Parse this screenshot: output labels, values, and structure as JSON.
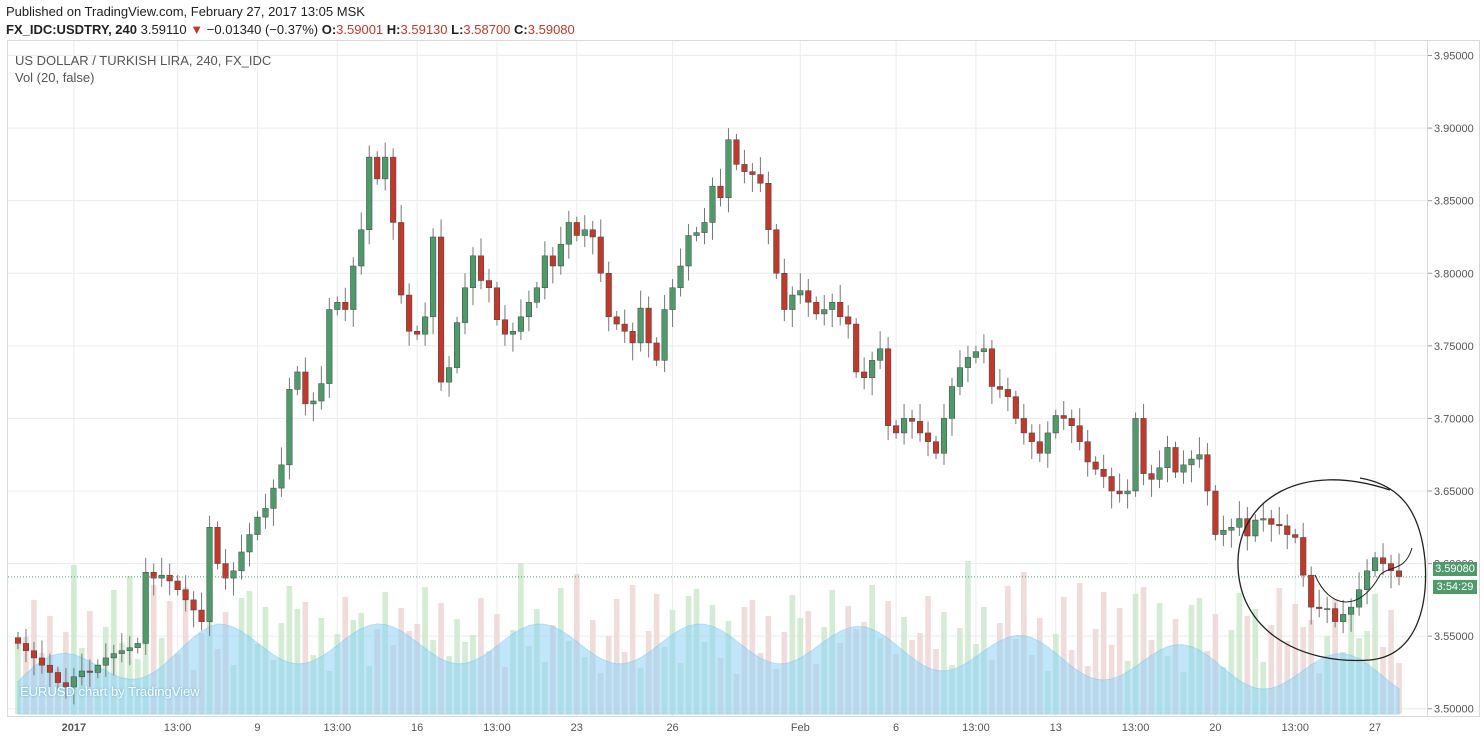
{
  "header": {
    "published": "Published on TradingView.com, February 27, 2017 13:05 MSK",
    "symbol": "FX_IDC:USDTRY, 240",
    "last": "3.59110",
    "change": "−0.01340 (−0.37%)",
    "o_label": "O:",
    "o_value": "3.59001",
    "h_label": "H:",
    "h_value": "3.59130",
    "l_label": "L:",
    "l_value": "3.58700",
    "c_label": "C:",
    "c_value": "3.59080"
  },
  "legend": {
    "title": "US DOLLAR / TURKISH LIRA, 240, FX_IDC",
    "volume": "Vol (20, false)"
  },
  "watermark": "EURUSD chart by TradingView",
  "badges": {
    "price": "3.59080",
    "time": "3:54:29"
  },
  "colors": {
    "up": "#4f9a6b",
    "down": "#c0392b",
    "vol_up": "#c9e6c9",
    "vol_down": "#eed3d3",
    "ma": "#8fd2f5"
  },
  "chart_data": {
    "type": "candlestick",
    "ylim": [
      3.495,
      3.96
    ],
    "y_ticks": [
      "3.95000",
      "3.90000",
      "3.85000",
      "3.80000",
      "3.75000",
      "3.70000",
      "3.65000",
      "3.60000",
      "3.55000",
      "3.50000"
    ],
    "y_tick_values": [
      3.95,
      3.9,
      3.85,
      3.8,
      3.75,
      3.7,
      3.65,
      3.6,
      3.55,
      3.5
    ],
    "x_ticks": [
      {
        "label": "2017",
        "bar": 7,
        "bold": true
      },
      {
        "label": "13:00",
        "bar": 20
      },
      {
        "label": "9",
        "bar": 30
      },
      {
        "label": "13:00",
        "bar": 40
      },
      {
        "label": "16",
        "bar": 50
      },
      {
        "label": "13:00",
        "bar": 60
      },
      {
        "label": "23",
        "bar": 70
      },
      {
        "label": "26",
        "bar": 82
      },
      {
        "label": "Feb",
        "bar": 98
      },
      {
        "label": "6",
        "bar": 110
      },
      {
        "label": "13:00",
        "bar": 120
      },
      {
        "label": "13",
        "bar": 130
      },
      {
        "label": "13:00",
        "bar": 140
      },
      {
        "label": "20",
        "bar": 150
      },
      {
        "label": "13:00",
        "bar": 160
      },
      {
        "label": "27",
        "bar": 170
      }
    ],
    "current_price": 3.5908,
    "closes": [
      3.545,
      3.54,
      3.535,
      3.53,
      3.525,
      3.518,
      3.515,
      3.522,
      3.526,
      3.525,
      3.53,
      3.535,
      3.538,
      3.54,
      3.542,
      3.545,
      3.594,
      3.59,
      3.592,
      3.588,
      3.582,
      3.575,
      3.568,
      3.56,
      3.625,
      3.6,
      3.59,
      3.595,
      3.608,
      3.62,
      3.632,
      3.638,
      3.652,
      3.668,
      3.72,
      3.732,
      3.71,
      3.712,
      3.724,
      3.775,
      3.78,
      3.775,
      3.805,
      3.83,
      3.88,
      3.865,
      3.88,
      3.835,
      3.785,
      3.76,
      3.758,
      3.77,
      3.825,
      3.725,
      3.735,
      3.766,
      3.79,
      3.812,
      3.795,
      3.79,
      3.768,
      3.758,
      3.76,
      3.77,
      3.78,
      3.79,
      3.812,
      3.805,
      3.82,
      3.835,
      3.826,
      3.83,
      3.825,
      3.8,
      3.77,
      3.765,
      3.76,
      3.752,
      3.776,
      3.752,
      3.74,
      3.775,
      3.79,
      3.805,
      3.826,
      3.828,
      3.835,
      3.86,
      3.852,
      3.892,
      3.875,
      3.87,
      3.868,
      3.862,
      3.83,
      3.8,
      3.775,
      3.785,
      3.788,
      3.78,
      3.772,
      3.775,
      3.78,
      3.77,
      3.765,
      3.732,
      3.728,
      3.74,
      3.748,
      3.695,
      3.69,
      3.7,
      3.698,
      3.69,
      3.684,
      3.676,
      3.7,
      3.722,
      3.735,
      3.742,
      3.746,
      3.748,
      3.722,
      3.72,
      3.715,
      3.7,
      3.69,
      3.684,
      3.676,
      3.69,
      3.702,
      3.7,
      3.695,
      3.684,
      3.67,
      3.665,
      3.66,
      3.65,
      3.648,
      3.65,
      3.7,
      3.662,
      3.658,
      3.666,
      3.68,
      3.663,
      3.668,
      3.672,
      3.675,
      3.65,
      3.62,
      3.623,
      3.625,
      3.631,
      3.619,
      3.63,
      3.631,
      3.627,
      3.626,
      3.62,
      3.618,
      3.592,
      3.57,
      3.569,
      3.569,
      3.56,
      3.565,
      3.57,
      3.582,
      3.595,
      3.604,
      3.6,
      3.595,
      3.591
    ],
    "volume_max": 1.0
  }
}
